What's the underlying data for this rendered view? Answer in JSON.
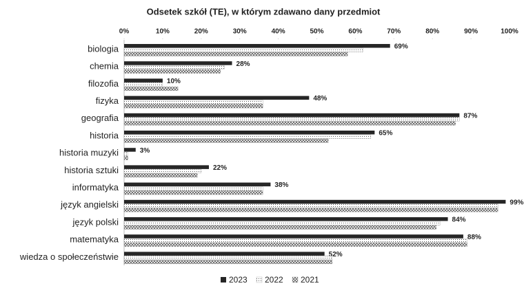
{
  "chart_data": {
    "type": "bar",
    "orientation": "horizontal",
    "title": "Odsetek szkół (TE), w którym zdawano dany przedmiot",
    "categories": [
      "biologia",
      "chemia",
      "filozofia",
      "fizyka",
      "geografia",
      "historia",
      "historia muzyki",
      "historia sztuki",
      "informatyka",
      "język angielski",
      "język polski",
      "matematyka",
      "wiedza o społeczeństwie"
    ],
    "series": [
      {
        "name": "2023",
        "color": "#262626",
        "pattern": "solid",
        "values": [
          69,
          28,
          10,
          48,
          87,
          65,
          3,
          22,
          38,
          99,
          84,
          88,
          52
        ],
        "value_labels": [
          "69%",
          "28%",
          "10%",
          "48%",
          "87%",
          "65%",
          "3%",
          "22%",
          "38%",
          "99%",
          "84%",
          "88%",
          "52%"
        ]
      },
      {
        "name": "2022",
        "color": "#555555",
        "pattern": "dots",
        "values": [
          62,
          26,
          10,
          36,
          87,
          64,
          1,
          20,
          36,
          97,
          82,
          89,
          54
        ]
      },
      {
        "name": "2021",
        "color": "#555555",
        "pattern": "crosshatch",
        "values": [
          58,
          25,
          14,
          36,
          86,
          53,
          1,
          19,
          36,
          97,
          81,
          89,
          54
        ]
      }
    ],
    "xlim": [
      0,
      100
    ],
    "xticks": [
      {
        "value": 0,
        "label": "0%"
      },
      {
        "value": 10,
        "label": "10%"
      },
      {
        "value": 20,
        "label": "20%"
      },
      {
        "value": 30,
        "label": "30%"
      },
      {
        "value": 40,
        "label": "40%"
      },
      {
        "value": 50,
        "label": "50%"
      },
      {
        "value": 60,
        "label": "60%"
      },
      {
        "value": 70,
        "label": "70%"
      },
      {
        "value": 80,
        "label": "80%"
      },
      {
        "value": 90,
        "label": "90%"
      },
      {
        "value": 100,
        "label": "100%"
      }
    ],
    "grid": false,
    "legend": "bottom"
  }
}
